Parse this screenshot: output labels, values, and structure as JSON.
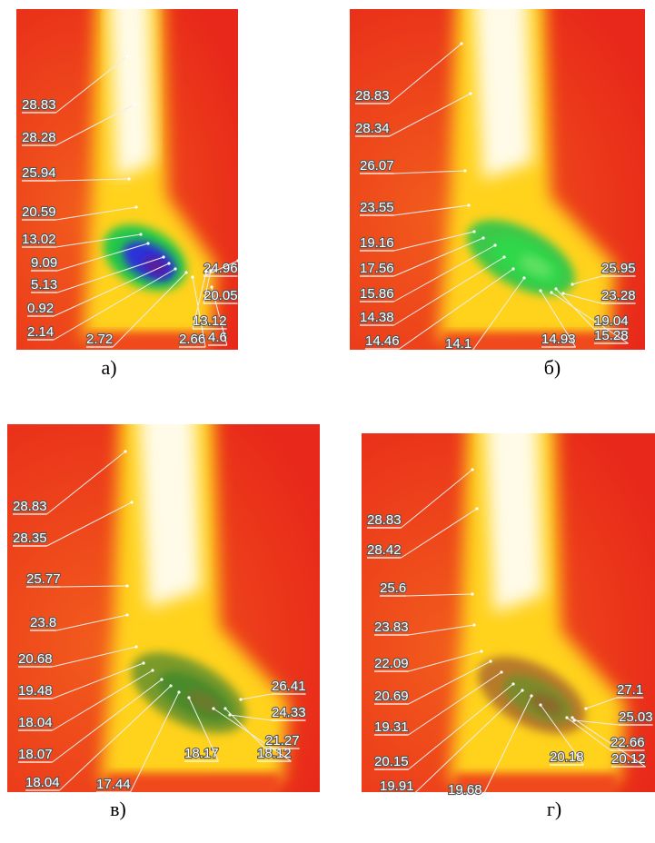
{
  "panels": [
    {
      "caption": "а)",
      "labels": [
        "28.83",
        "28.28",
        "25.94",
        "20.59",
        "13.02",
        "9.09",
        "5.13",
        "0.92",
        "2.14",
        "2.72",
        "2.66",
        "4.6",
        "24.96",
        "20.05",
        "13.12"
      ]
    },
    {
      "caption": "б)",
      "labels": [
        "28.83",
        "28.34",
        "26.07",
        "23.55",
        "19.16",
        "17.56",
        "15.86",
        "14.38",
        "14.46",
        "14.1",
        "14.93",
        "15.28",
        "25.95",
        "23.28",
        "19.04"
      ]
    },
    {
      "caption": "в)",
      "labels": [
        "28.83",
        "28.35",
        "25.77",
        "23.8",
        "20.68",
        "19.48",
        "18.04",
        "18.07",
        "18.04",
        "17.44",
        "18.17",
        "18.12",
        "26.41",
        "24.33",
        "21.27"
      ]
    },
    {
      "caption": "г)",
      "labels": [
        "28.83",
        "28.42",
        "25.6",
        "23.83",
        "22.09",
        "20.69",
        "19.31",
        "20.15",
        "19.91",
        "19.68",
        "20.18",
        "20.12",
        "27.1",
        "25.03",
        "22.66"
      ]
    }
  ]
}
